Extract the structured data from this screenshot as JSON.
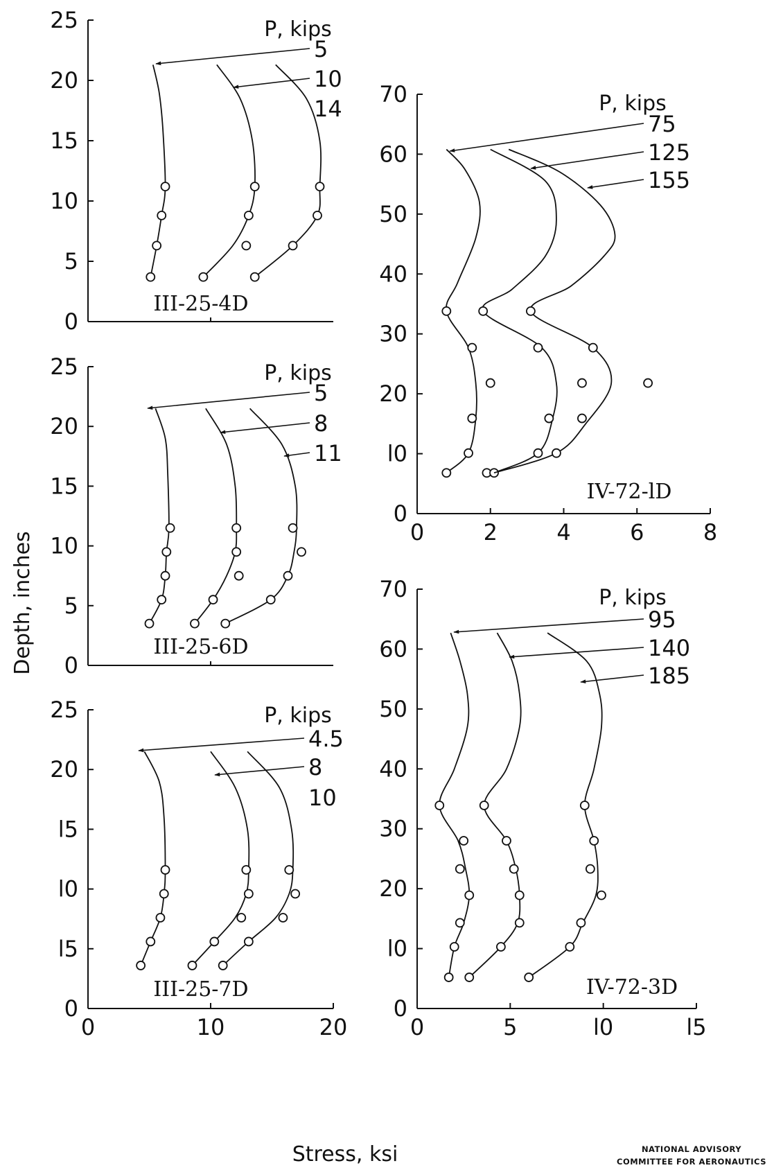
{
  "figure": {
    "y_axis_label": "Depth, inches",
    "x_axis_label": "Stress, ksi",
    "credit_line1": "NATIONAL ADVISORY",
    "credit_line2": "COMMITTEE FOR AERONAUTICS"
  },
  "chart_data": [
    {
      "type": "line",
      "panel_position": "left-top",
      "specimen": "III-25-4D",
      "legend_title": "P,  kips",
      "xlim": [
        0,
        20
      ],
      "ylim": [
        0,
        25
      ],
      "y_ticks": [
        "0",
        "5",
        "10",
        "15",
        "20",
        "25"
      ],
      "x_ticks": [],
      "curve_top": 21.3,
      "series": [
        {
          "name": "5",
          "points": [
            [
              5.1,
              3.7
            ],
            [
              5.6,
              6.3
            ],
            [
              6.0,
              8.8
            ],
            [
              6.3,
              11.2
            ]
          ],
          "curve": [
            [
              5.1,
              3.7
            ],
            [
              5.6,
              6.3
            ],
            [
              6.0,
              8.8
            ],
            [
              6.3,
              11.2
            ],
            [
              6.1,
              16.0
            ],
            [
              5.8,
              19.0
            ],
            [
              5.3,
              21.3
            ]
          ]
        },
        {
          "name": "10",
          "points": [
            [
              9.4,
              3.7
            ],
            [
              12.9,
              6.3
            ],
            [
              13.1,
              8.8
            ],
            [
              13.6,
              11.2
            ]
          ],
          "curve": [
            [
              9.4,
              3.7
            ],
            [
              11.8,
              6.3
            ],
            [
              13.1,
              8.8
            ],
            [
              13.6,
              11.2
            ],
            [
              13.4,
              15.0
            ],
            [
              12.4,
              18.5
            ],
            [
              10.5,
              21.3
            ]
          ]
        },
        {
          "name": "14",
          "points": [
            [
              13.6,
              3.7
            ],
            [
              16.7,
              6.3
            ],
            [
              18.7,
              8.8
            ],
            [
              18.9,
              11.2
            ]
          ],
          "curve": [
            [
              13.6,
              3.7
            ],
            [
              16.7,
              6.3
            ],
            [
              18.7,
              8.8
            ],
            [
              18.9,
              11.2
            ],
            [
              18.9,
              15.0
            ],
            [
              17.8,
              18.5
            ],
            [
              15.3,
              21.3
            ]
          ]
        }
      ]
    },
    {
      "type": "line",
      "panel_position": "left-middle",
      "specimen": "III-25-6D",
      "legend_title": "P,  kips",
      "xlim": [
        0,
        20
      ],
      "ylim": [
        0,
        25
      ],
      "y_ticks": [
        "0",
        "5",
        "10",
        "15",
        "20",
        "25"
      ],
      "x_ticks": [],
      "curve_top": 21.5,
      "series": [
        {
          "name": "5",
          "points": [
            [
              5.0,
              3.5
            ],
            [
              6.0,
              5.5
            ],
            [
              6.3,
              7.5
            ],
            [
              6.4,
              9.5
            ],
            [
              6.7,
              11.5
            ]
          ],
          "curve": [
            [
              5.0,
              3.5
            ],
            [
              6.0,
              5.5
            ],
            [
              6.3,
              7.5
            ],
            [
              6.4,
              9.5
            ],
            [
              6.6,
              11.5
            ],
            [
              6.5,
              16.0
            ],
            [
              6.3,
              19.0
            ],
            [
              5.5,
              21.5
            ]
          ]
        },
        {
          "name": "8",
          "points": [
            [
              8.7,
              3.5
            ],
            [
              10.2,
              5.5
            ],
            [
              12.3,
              7.5
            ],
            [
              12.1,
              9.5
            ],
            [
              12.1,
              11.5
            ]
          ],
          "curve": [
            [
              8.7,
              3.5
            ],
            [
              10.2,
              5.5
            ],
            [
              11.3,
              7.5
            ],
            [
              12.0,
              9.5
            ],
            [
              12.1,
              11.5
            ],
            [
              12.0,
              15.0
            ],
            [
              11.3,
              18.5
            ],
            [
              9.6,
              21.5
            ]
          ]
        },
        {
          "name": "11",
          "points": [
            [
              11.2,
              3.5
            ],
            [
              14.9,
              5.5
            ],
            [
              16.3,
              7.5
            ],
            [
              17.4,
              9.5
            ],
            [
              16.7,
              11.5
            ]
          ],
          "curve": [
            [
              11.2,
              3.5
            ],
            [
              14.9,
              5.5
            ],
            [
              16.3,
              7.5
            ],
            [
              16.8,
              9.5
            ],
            [
              17.0,
              11.5
            ],
            [
              16.9,
              15.0
            ],
            [
              15.8,
              18.5
            ],
            [
              13.2,
              21.5
            ]
          ]
        }
      ]
    },
    {
      "type": "line",
      "panel_position": "left-bottom",
      "specimen": "III-25-7D",
      "legend_title": "P,  kips",
      "xlim": [
        0,
        20
      ],
      "ylim": [
        0,
        25
      ],
      "y_ticks": [
        "0",
        "l5",
        "l0",
        "l5",
        "20",
        "25"
      ],
      "x_ticks": [
        "0",
        "10",
        "20"
      ],
      "curve_top": 21.5,
      "series": [
        {
          "name": "4.5",
          "points": [
            [
              4.3,
              3.6
            ],
            [
              5.1,
              5.6
            ],
            [
              5.9,
              7.6
            ],
            [
              6.2,
              9.6
            ],
            [
              6.3,
              11.6
            ]
          ],
          "curve": [
            [
              4.3,
              3.6
            ],
            [
              5.1,
              5.6
            ],
            [
              5.9,
              7.6
            ],
            [
              6.2,
              9.6
            ],
            [
              6.3,
              11.6
            ],
            [
              6.2,
              16.0
            ],
            [
              5.8,
              19.0
            ],
            [
              4.6,
              21.5
            ]
          ]
        },
        {
          "name": "8",
          "points": [
            [
              8.5,
              3.6
            ],
            [
              10.3,
              5.6
            ],
            [
              12.5,
              7.6
            ],
            [
              13.1,
              9.6
            ],
            [
              12.9,
              11.6
            ]
          ],
          "curve": [
            [
              8.5,
              3.6
            ],
            [
              10.3,
              5.6
            ],
            [
              12.0,
              7.6
            ],
            [
              12.9,
              9.6
            ],
            [
              13.1,
              11.6
            ],
            [
              13.0,
              15.0
            ],
            [
              12.0,
              18.5
            ],
            [
              10.0,
              21.5
            ]
          ]
        },
        {
          "name": "10",
          "points": [
            [
              11.0,
              3.6
            ],
            [
              13.1,
              5.6
            ],
            [
              15.9,
              7.6
            ],
            [
              16.9,
              9.6
            ],
            [
              16.4,
              11.6
            ]
          ],
          "curve": [
            [
              11.0,
              3.6
            ],
            [
              13.1,
              5.6
            ],
            [
              15.3,
              7.6
            ],
            [
              16.4,
              9.6
            ],
            [
              16.7,
              11.6
            ],
            [
              16.6,
              15.0
            ],
            [
              15.6,
              18.5
            ],
            [
              13.0,
              21.5
            ]
          ]
        }
      ]
    },
    {
      "type": "line",
      "panel_position": "right-top",
      "specimen": "IV-72-lD",
      "legend_title": "P,  kips",
      "xlim": [
        0,
        8
      ],
      "ylim": [
        0,
        70
      ],
      "y_ticks": [
        "0",
        "l0",
        "20",
        "30",
        "40",
        "50",
        "60",
        "70"
      ],
      "x_ticks": [
        "0",
        "2",
        "4",
        "6",
        "8"
      ],
      "curve_top": 60.8,
      "series": [
        {
          "name": "75",
          "points": [
            [
              0.8,
              6.8
            ],
            [
              1.4,
              10.1
            ],
            [
              1.5,
              15.9
            ],
            [
              1.5,
              27.7
            ],
            [
              0.8,
              33.8
            ]
          ],
          "curve": [
            [
              0.8,
              6.8
            ],
            [
              1.4,
              10.1
            ],
            [
              1.6,
              15.9
            ],
            [
              1.6,
              21.8
            ],
            [
              1.4,
              27.7
            ],
            [
              0.8,
              33.8
            ],
            [
              1.1,
              38.5
            ],
            [
              1.6,
              46.0
            ],
            [
              1.7,
              52.0
            ],
            [
              1.3,
              57.5
            ],
            [
              0.8,
              60.8
            ]
          ]
        },
        {
          "name": "125",
          "points": [
            [
              1.9,
              6.8
            ],
            [
              2.1,
              6.8
            ],
            [
              3.3,
              10.1
            ],
            [
              3.6,
              15.9
            ],
            [
              2.0,
              21.8
            ],
            [
              3.3,
              27.7
            ],
            [
              1.8,
              33.8
            ]
          ],
          "curve": [
            [
              2.1,
              6.8
            ],
            [
              3.3,
              10.1
            ],
            [
              3.7,
              15.9
            ],
            [
              3.8,
              21.8
            ],
            [
              3.4,
              27.7
            ],
            [
              1.8,
              33.8
            ],
            [
              2.6,
              37.5
            ],
            [
              3.5,
              43.0
            ],
            [
              3.8,
              49.0
            ],
            [
              3.5,
              55.5
            ],
            [
              2.0,
              60.8
            ]
          ]
        },
        {
          "name": "155",
          "points": [
            [
              3.8,
              10.1
            ],
            [
              4.5,
              15.9
            ],
            [
              4.5,
              21.8
            ],
            [
              6.3,
              21.8
            ],
            [
              4.8,
              27.7
            ],
            [
              3.1,
              33.8
            ]
          ],
          "curve": [
            [
              2.1,
              6.8
            ],
            [
              3.8,
              10.1
            ],
            [
              4.6,
              15.0
            ],
            [
              5.3,
              21.8
            ],
            [
              4.8,
              27.7
            ],
            [
              3.1,
              33.8
            ],
            [
              4.2,
              38.0
            ],
            [
              5.1,
              43.0
            ],
            [
              5.4,
              46.5
            ],
            [
              5.0,
              51.5
            ],
            [
              3.9,
              57.0
            ],
            [
              2.5,
              60.8
            ]
          ]
        }
      ]
    },
    {
      "type": "line",
      "panel_position": "right-bottom",
      "specimen": "IV-72-3D",
      "legend_title": "P,  kips",
      "xlim": [
        0,
        15
      ],
      "ylim": [
        0,
        70
      ],
      "y_ticks": [
        "0",
        "l0",
        "20",
        "30",
        "40",
        "50",
        "60",
        "70"
      ],
      "x_ticks": [
        "0",
        "5",
        "l0",
        "l5"
      ],
      "curve_top": 62.7,
      "series": [
        {
          "name": "95",
          "points": [
            [
              1.7,
              5.2
            ],
            [
              2.0,
              10.3
            ],
            [
              2.3,
              14.3
            ],
            [
              2.8,
              18.9
            ],
            [
              2.3,
              23.3
            ],
            [
              2.5,
              28.0
            ],
            [
              1.2,
              33.9
            ]
          ],
          "curve": [
            [
              1.7,
              5.2
            ],
            [
              2.0,
              10.3
            ],
            [
              2.5,
              14.3
            ],
            [
              2.8,
              18.9
            ],
            [
              2.6,
              23.3
            ],
            [
              2.2,
              28.0
            ],
            [
              1.2,
              33.9
            ],
            [
              2.0,
              40.0
            ],
            [
              2.7,
              47.0
            ],
            [
              2.7,
              52.5
            ],
            [
              2.3,
              58.0
            ],
            [
              1.8,
              62.7
            ]
          ]
        },
        {
          "name": "140",
          "points": [
            [
              2.8,
              5.2
            ],
            [
              4.5,
              10.3
            ],
            [
              5.5,
              14.3
            ],
            [
              5.5,
              18.9
            ],
            [
              5.2,
              23.3
            ],
            [
              4.8,
              28.0
            ],
            [
              3.6,
              33.9
            ]
          ],
          "curve": [
            [
              2.8,
              5.2
            ],
            [
              4.5,
              10.3
            ],
            [
              5.4,
              14.3
            ],
            [
              5.5,
              18.9
            ],
            [
              5.3,
              23.3
            ],
            [
              4.8,
              28.0
            ],
            [
              3.6,
              33.9
            ],
            [
              4.8,
              40.0
            ],
            [
              5.5,
              47.0
            ],
            [
              5.5,
              52.5
            ],
            [
              5.1,
              58.0
            ],
            [
              4.3,
              62.7
            ]
          ]
        },
        {
          "name": "185",
          "points": [
            [
              6.0,
              5.2
            ],
            [
              8.2,
              10.3
            ],
            [
              8.8,
              14.3
            ],
            [
              9.9,
              18.9
            ],
            [
              9.3,
              23.3
            ],
            [
              9.5,
              28.0
            ],
            [
              9.0,
              33.9
            ]
          ],
          "curve": [
            [
              6.0,
              5.2
            ],
            [
              8.2,
              10.3
            ],
            [
              8.9,
              14.3
            ],
            [
              9.6,
              18.9
            ],
            [
              9.7,
              23.3
            ],
            [
              9.5,
              28.0
            ],
            [
              9.0,
              33.9
            ],
            [
              9.5,
              40.0
            ],
            [
              9.9,
              47.0
            ],
            [
              9.8,
              52.5
            ],
            [
              9.1,
              58.0
            ],
            [
              7.0,
              62.7
            ]
          ]
        }
      ]
    }
  ]
}
